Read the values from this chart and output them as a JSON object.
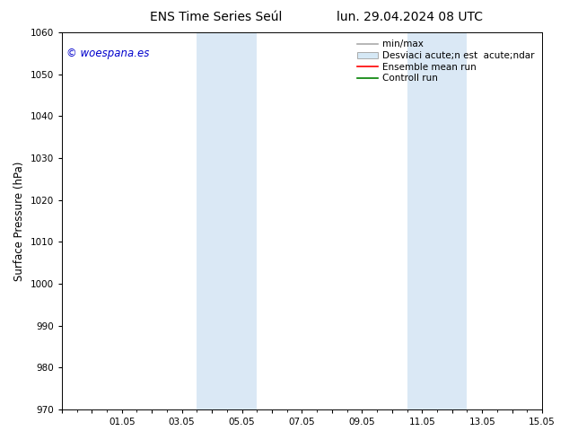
{
  "title_left": "ENS Time Series Seúl",
  "title_right": "lun. 29.04.2024 08 UTC",
  "ylabel": "Surface Pressure (hPa)",
  "ylim": [
    970,
    1060
  ],
  "yticks": [
    970,
    980,
    990,
    1000,
    1010,
    1020,
    1030,
    1040,
    1050,
    1060
  ],
  "x_start": 0,
  "x_end": 16,
  "xtick_positions": [
    0,
    1,
    2,
    3,
    4,
    5,
    6,
    7,
    8,
    9,
    10,
    11,
    12,
    13,
    14,
    15,
    16
  ],
  "xtick_labels": [
    "",
    "",
    "01.05",
    "",
    "03.05",
    "",
    "05.05",
    "",
    "07.05",
    "",
    "09.05",
    "",
    "11.05",
    "",
    "13.05",
    "",
    "15.05"
  ],
  "shaded_regions": [
    {
      "xmin": 4.5,
      "xmax": 6.5,
      "color": "#dae8f5"
    },
    {
      "xmin": 11.5,
      "xmax": 13.5,
      "color": "#dae8f5"
    }
  ],
  "watermark_text": "© woespana.es",
  "watermark_color": "#0000cc",
  "legend_line1_label": "min/max",
  "legend_line1_color": "#aaaaaa",
  "legend_patch_label": "Desviaci acute;n est  acute;ndar",
  "legend_patch_facecolor": "#d5e8f5",
  "legend_patch_edgecolor": "#aaaaaa",
  "legend_line3_label": "Ensemble mean run",
  "legend_line3_color": "red",
  "legend_line4_label": "Controll run",
  "legend_line4_color": "green",
  "bg_color": "#ffffff",
  "plot_bg_color": "#ffffff",
  "title_fontsize": 10,
  "tick_fontsize": 7.5,
  "ylabel_fontsize": 8.5,
  "legend_fontsize": 7.5
}
